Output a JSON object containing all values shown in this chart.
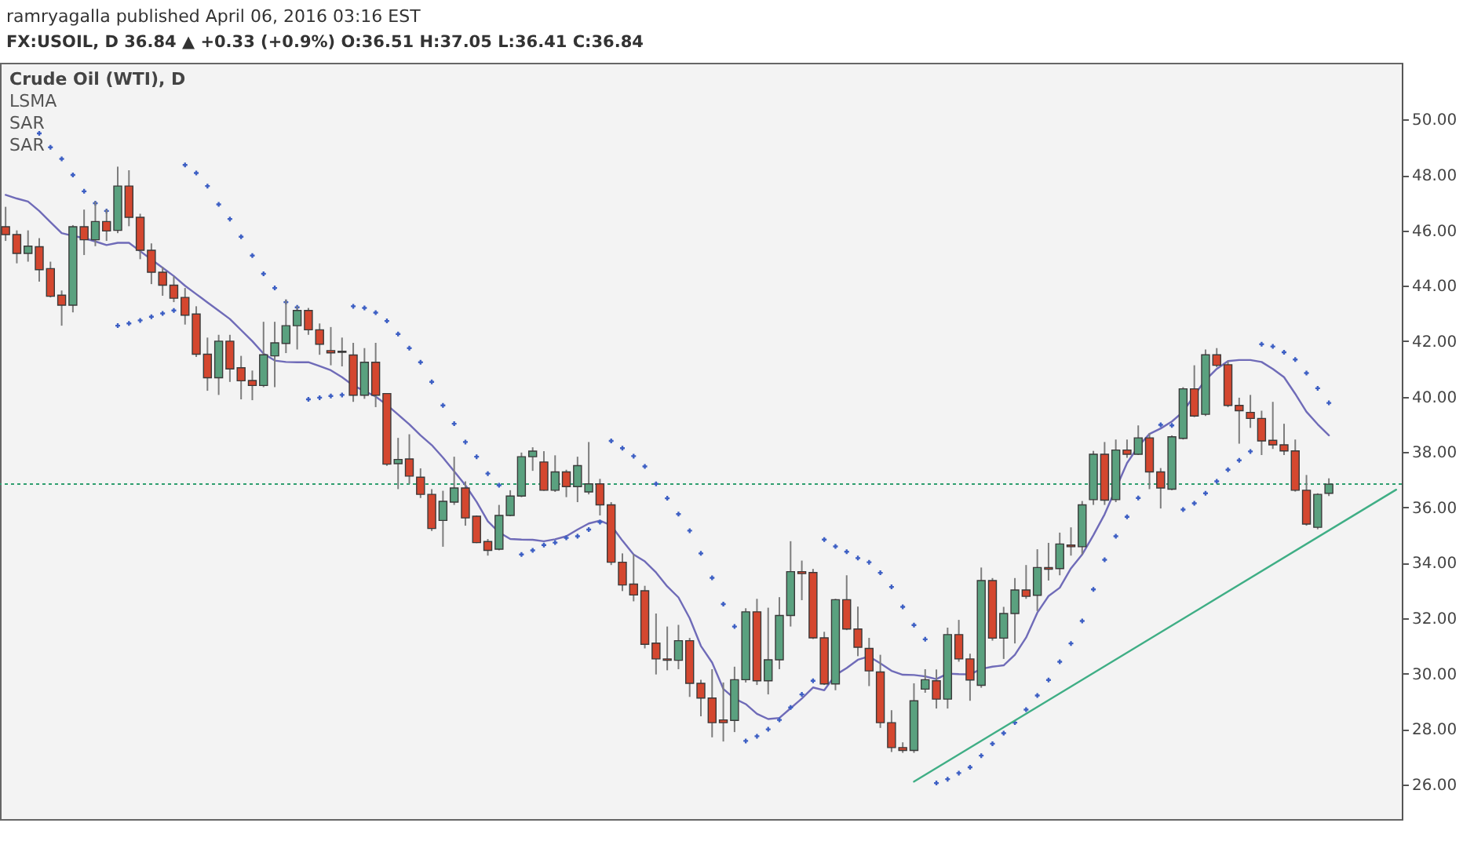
{
  "chart_data": {
    "type": "candlestick",
    "title": "Crude Oil (WTI), D",
    "annotations": [
      "ramryagalla published April 06, 2016 03:16 EST",
      "FX:USOIL, D  36.84 ▲ +0.33 (+0.9%)  O:36.51  H:37.05  L:36.41  C:36.84",
      "LSMA",
      "SAR",
      "SAR"
    ],
    "categories": [
      null,
      null,
      null,
      null,
      null,
      null,
      null,
      null,
      null,
      null,
      null,
      null,
      null,
      null,
      null,
      null,
      null,
      null,
      null,
      null,
      null,
      null,
      null,
      null,
      null,
      null,
      null,
      null,
      null,
      null,
      null,
      null,
      null,
      null,
      null,
      null,
      null,
      null,
      null,
      null,
      null,
      null,
      null,
      null,
      null,
      null,
      null,
      null,
      null,
      null,
      null,
      null,
      null,
      null,
      null,
      null,
      null,
      null,
      null,
      null,
      null,
      null,
      null,
      null,
      null,
      null,
      null,
      null,
      null,
      null,
      null,
      null,
      null,
      null,
      null,
      null,
      null,
      null,
      null,
      null,
      null,
      null,
      null,
      null,
      null,
      null,
      null,
      null,
      null,
      null,
      null,
      null,
      null,
      null,
      null,
      null,
      null,
      null,
      null,
      null,
      null,
      null,
      null,
      null,
      null,
      null,
      null,
      null,
      null,
      null,
      null,
      null,
      null,
      null,
      null,
      null,
      null,
      null,
      null,
      null,
      null,
      null,
      null,
      null,
      null
    ],
    "ohlc": [
      [
        46.13,
        46.85,
        45.62,
        45.85
      ],
      [
        45.85,
        46.0,
        44.81,
        45.17
      ],
      [
        45.17,
        46.0,
        44.87,
        45.43
      ],
      [
        45.41,
        45.72,
        44.15,
        44.58
      ],
      [
        44.62,
        44.87,
        43.58,
        43.62
      ],
      [
        43.66,
        43.83,
        42.56,
        43.3
      ],
      [
        43.3,
        46.19,
        43.04,
        46.13
      ],
      [
        46.13,
        46.75,
        45.11,
        45.66
      ],
      [
        45.66,
        47.04,
        45.43,
        46.32
      ],
      [
        46.32,
        46.75,
        45.62,
        45.98
      ],
      [
        46.0,
        48.3,
        45.9,
        47.6
      ],
      [
        47.6,
        48.17,
        46.15,
        46.47
      ],
      [
        46.47,
        46.6,
        44.96,
        45.28
      ],
      [
        45.28,
        45.53,
        44.06,
        44.49
      ],
      [
        44.49,
        44.68,
        43.64,
        44.02
      ],
      [
        44.02,
        44.34,
        43.41,
        43.55
      ],
      [
        43.58,
        43.92,
        42.6,
        42.94
      ],
      [
        42.98,
        43.26,
        41.43,
        41.53
      ],
      [
        41.53,
        42.13,
        40.21,
        40.68
      ],
      [
        40.68,
        42.23,
        40.06,
        42.0
      ],
      [
        42.0,
        42.23,
        40.53,
        41.0
      ],
      [
        41.04,
        41.47,
        39.9,
        40.57
      ],
      [
        40.58,
        40.94,
        39.87,
        40.4
      ],
      [
        40.4,
        42.7,
        40.34,
        41.51
      ],
      [
        41.47,
        42.7,
        40.34,
        41.94
      ],
      [
        41.92,
        43.51,
        41.57,
        42.56
      ],
      [
        42.56,
        43.26,
        41.7,
        43.11
      ],
      [
        43.11,
        43.2,
        42.23,
        42.41
      ],
      [
        42.41,
        42.64,
        41.51,
        41.89
      ],
      [
        41.66,
        42.51,
        41.13,
        41.58
      ],
      [
        41.64,
        42.13,
        41.09,
        41.6
      ],
      [
        41.5,
        41.94,
        39.81,
        40.05
      ],
      [
        40.05,
        41.75,
        39.92,
        41.24
      ],
      [
        41.24,
        41.94,
        39.62,
        40.05
      ],
      [
        40.11,
        40.11,
        37.5,
        37.56
      ],
      [
        37.58,
        38.51,
        36.66,
        37.73
      ],
      [
        37.75,
        38.64,
        36.85,
        37.13
      ],
      [
        37.09,
        37.41,
        36.34,
        36.47
      ],
      [
        36.47,
        36.66,
        35.15,
        35.24
      ],
      [
        35.53,
        36.6,
        34.58,
        36.22
      ],
      [
        36.19,
        37.83,
        36.09,
        36.7
      ],
      [
        36.7,
        36.94,
        35.34,
        35.62
      ],
      [
        35.68,
        35.71,
        34.71,
        34.73
      ],
      [
        34.77,
        34.86,
        34.26,
        34.45
      ],
      [
        34.49,
        36.09,
        34.45,
        35.71
      ],
      [
        35.71,
        36.62,
        35.68,
        36.41
      ],
      [
        36.41,
        37.98,
        36.37,
        37.83
      ],
      [
        37.83,
        38.17,
        37.32,
        38.03
      ],
      [
        37.64,
        38.03,
        36.6,
        36.62
      ],
      [
        36.62,
        37.88,
        36.56,
        37.28
      ],
      [
        37.28,
        37.36,
        36.37,
        36.75
      ],
      [
        36.75,
        37.83,
        36.19,
        37.51
      ],
      [
        36.56,
        38.36,
        36.47,
        36.85
      ],
      [
        36.85,
        37.03,
        35.71,
        36.09
      ],
      [
        36.09,
        36.19,
        33.92,
        34.02
      ],
      [
        34.02,
        34.34,
        32.98,
        33.2
      ],
      [
        33.23,
        34.31,
        32.61,
        32.84
      ],
      [
        32.99,
        33.17,
        30.91,
        31.06
      ],
      [
        31.1,
        32.17,
        29.97,
        30.53
      ],
      [
        30.53,
        31.7,
        30.12,
        30.48
      ],
      [
        30.48,
        31.76,
        30.16,
        31.19
      ],
      [
        31.19,
        31.29,
        29.16,
        29.65
      ],
      [
        29.65,
        29.78,
        28.46,
        29.12
      ],
      [
        29.12,
        30.16,
        27.7,
        28.23
      ],
      [
        28.33,
        29.68,
        27.55,
        28.23
      ],
      [
        28.31,
        30.25,
        27.89,
        29.78
      ],
      [
        29.78,
        32.36,
        29.68,
        32.23
      ],
      [
        32.23,
        32.7,
        29.59,
        29.74
      ],
      [
        29.74,
        32.38,
        29.25,
        30.5
      ],
      [
        30.5,
        32.76,
        30.16,
        32.1
      ],
      [
        32.1,
        34.78,
        31.7,
        33.68
      ],
      [
        33.68,
        34.08,
        32.65,
        33.61
      ],
      [
        33.65,
        33.78,
        31.25,
        31.29
      ],
      [
        31.29,
        31.51,
        29.59,
        29.63
      ],
      [
        29.63,
        32.7,
        29.4,
        32.67
      ],
      [
        32.67,
        33.55,
        31.57,
        31.61
      ],
      [
        31.61,
        32.42,
        30.63,
        30.95
      ],
      [
        30.91,
        31.29,
        29.55,
        30.1
      ],
      [
        30.06,
        30.68,
        28.04,
        28.23
      ],
      [
        28.23,
        28.68,
        27.17,
        27.33
      ],
      [
        27.33,
        27.52,
        27.14,
        27.23
      ],
      [
        27.23,
        29.65,
        27.14,
        29.02
      ],
      [
        29.44,
        30.16,
        29.31,
        29.78
      ],
      [
        29.74,
        30.15,
        28.74,
        29.08
      ],
      [
        29.08,
        31.66,
        28.74,
        31.41
      ],
      [
        31.41,
        31.94,
        30.43,
        30.53
      ],
      [
        30.53,
        30.72,
        29.02,
        29.77
      ],
      [
        29.58,
        33.83,
        29.49,
        33.36
      ],
      [
        33.36,
        33.45,
        31.19,
        31.28
      ],
      [
        31.28,
        32.41,
        30.53,
        32.17
      ],
      [
        32.17,
        33.45,
        31.09,
        33.02
      ],
      [
        33.02,
        33.92,
        32.7,
        32.79
      ],
      [
        32.83,
        34.49,
        32.26,
        33.83
      ],
      [
        33.83,
        34.72,
        33.36,
        33.77
      ],
      [
        33.79,
        35.09,
        33.55,
        34.68
      ],
      [
        34.64,
        35.28,
        34.26,
        34.58
      ],
      [
        34.58,
        36.23,
        34.3,
        36.09
      ],
      [
        36.28,
        38.04,
        36.09,
        37.92
      ],
      [
        37.92,
        38.36,
        36.09,
        36.26
      ],
      [
        36.28,
        38.45,
        36.19,
        38.07
      ],
      [
        38.07,
        38.45,
        37.79,
        37.92
      ],
      [
        37.92,
        38.96,
        37.89,
        38.51
      ],
      [
        38.51,
        38.68,
        36.66,
        37.28
      ],
      [
        37.28,
        37.42,
        35.96,
        36.7
      ],
      [
        36.66,
        38.6,
        36.62,
        38.55
      ],
      [
        38.49,
        40.34,
        38.45,
        40.28
      ],
      [
        40.28,
        41.13,
        39.26,
        39.3
      ],
      [
        39.36,
        41.7,
        39.3,
        41.51
      ],
      [
        41.51,
        41.75,
        41.06,
        41.13
      ],
      [
        41.15,
        41.28,
        39.62,
        39.68
      ],
      [
        39.68,
        39.96,
        38.3,
        39.49
      ],
      [
        39.43,
        40.06,
        38.87,
        39.21
      ],
      [
        39.21,
        39.49,
        37.89,
        38.4
      ],
      [
        38.42,
        39.81,
        38.11,
        38.26
      ],
      [
        38.26,
        39.02,
        37.89,
        38.04
      ],
      [
        38.04,
        38.45,
        36.57,
        36.62
      ],
      [
        36.62,
        37.17,
        35.34,
        35.4
      ],
      [
        35.28,
        36.51,
        35.21,
        36.47
      ],
      [
        36.51,
        37.05,
        36.41,
        36.84
      ],
      null,
      null,
      null,
      null,
      null,
      null
    ],
    "colors": [
      "#d4472f",
      "#d4472f",
      "#5aa17f",
      "#d4472f",
      "#d4472f",
      "#d4472f",
      "#5aa17f",
      "#d4472f",
      "#5aa17f",
      "#d4472f",
      "#5aa17f",
      "#d4472f",
      "#d4472f",
      "#d4472f",
      "#d4472f",
      "#d4472f",
      "#d4472f",
      "#d4472f",
      "#d4472f",
      "#5aa17f",
      "#d4472f",
      "#d4472f",
      "#d4472f",
      "#5aa17f",
      "#5aa17f",
      "#5aa17f",
      "#5aa17f",
      "#d4472f",
      "#d4472f",
      "#d4472f",
      "#d4472f",
      "#d4472f",
      "#5aa17f",
      "#d4472f",
      "#d4472f",
      "#5aa17f",
      "#d4472f",
      "#d4472f",
      "#d4472f",
      "#5aa17f",
      "#5aa17f",
      "#d4472f",
      "#d4472f",
      "#d4472f",
      "#5aa17f",
      "#5aa17f",
      "#5aa17f",
      "#5aa17f",
      "#d4472f",
      "#5aa17f",
      "#d4472f",
      "#5aa17f",
      "#5aa17f",
      "#d4472f",
      "#d4472f",
      "#d4472f",
      "#d4472f",
      "#d4472f",
      "#d4472f",
      "#d4472f",
      "#5aa17f",
      "#d4472f",
      "#d4472f",
      "#d4472f",
      "#d4472f",
      "#5aa17f",
      "#5aa17f",
      "#d4472f",
      "#5aa17f",
      "#5aa17f",
      "#5aa17f",
      "#d4472f",
      "#d4472f",
      "#d4472f",
      "#5aa17f",
      "#d4472f",
      "#d4472f",
      "#d4472f",
      "#d4472f",
      "#d4472f",
      "#d4472f",
      "#5aa17f",
      "#5aa17f",
      "#d4472f",
      "#5aa17f",
      "#d4472f",
      "#d4472f",
      "#5aa17f",
      "#d4472f",
      "#5aa17f",
      "#5aa17f",
      "#d4472f",
      "#5aa17f",
      "#d4472f",
      "#5aa17f",
      "#d4472f",
      "#5aa17f",
      "#5aa17f",
      "#d4472f",
      "#5aa17f",
      "#d4472f",
      "#5aa17f",
      "#d4472f",
      "#d4472f",
      "#5aa17f",
      "#5aa17f",
      "#d4472f",
      "#5aa17f",
      "#d4472f",
      "#d4472f",
      "#d4472f",
      "#d4472f",
      "#d4472f",
      "#d4472f",
      "#d4472f",
      "#d4472f",
      "#d4472f",
      "#5aa17f",
      "#5aa17f",
      null,
      null,
      null,
      null,
      null,
      null
    ],
    "series": [
      {
        "type": "line",
        "color": "#6f6bb8",
        "values": [
          47.28,
          47.15,
          47.04,
          46.7,
          46.3,
          45.9,
          45.8,
          45.72,
          45.6,
          45.47,
          45.55,
          45.55,
          45.25,
          44.95,
          44.65,
          44.35,
          44.0,
          43.7,
          43.4,
          43.1,
          42.8,
          42.4,
          42.0,
          41.55,
          41.3,
          41.25,
          41.24,
          41.24,
          41.1,
          40.95,
          40.7,
          40.4,
          40.2,
          40.0,
          39.7,
          39.35,
          39.0,
          38.6,
          38.25,
          37.8,
          37.3,
          36.8,
          36.2,
          35.5,
          35.1,
          34.86,
          34.84,
          34.83,
          34.78,
          34.85,
          34.96,
          35.2,
          35.42,
          35.52,
          35.35,
          34.8,
          34.3,
          34.05,
          33.65,
          33.15,
          32.75,
          32.0,
          31.0,
          30.4,
          29.45,
          29.1,
          28.9,
          28.55,
          28.36,
          28.4,
          28.75,
          29.1,
          29.5,
          29.4,
          29.95,
          30.2,
          30.5,
          30.62,
          30.37,
          30.1,
          29.96,
          29.95,
          29.9,
          29.8,
          30.0,
          29.98,
          29.97,
          30.17,
          30.25,
          30.3,
          30.68,
          31.3,
          32.2,
          32.8,
          33.1,
          33.8,
          34.3,
          35.0,
          35.75,
          null,
          37.6,
          38.2,
          38.65,
          38.85,
          39.1,
          39.45,
          40.05,
          40.6,
          41.0,
          41.28,
          41.32,
          41.32,
          41.25,
          41.0,
          40.7,
          40.1,
          39.45,
          39.0,
          38.6,
          null,
          null,
          null,
          null,
          null,
          null
        ]
      },
      {
        "type": "scatter",
        "color": "#3d5fc4",
        "marker": "cross",
        "values": [
          null,
          null,
          null,
          49.5,
          49.0,
          48.58,
          48.0,
          47.41,
          46.98,
          46.7,
          42.56,
          42.64,
          42.75,
          42.88,
          43.0,
          43.11,
          48.36,
          48.07,
          47.6,
          46.94,
          46.41,
          45.77,
          45.09,
          44.43,
          43.92,
          43.41,
          43.22,
          39.9,
          39.96,
          40.02,
          40.06,
          43.26,
          43.2,
          43.03,
          42.73,
          42.26,
          41.75,
          41.24,
          40.53,
          39.68,
          39.02,
          38.36,
          37.83,
          37.22,
          36.8,
          null,
          34.3,
          34.45,
          34.64,
          34.73,
          34.9,
          34.96,
          35.2,
          35.47,
          38.4,
          38.14,
          37.85,
          37.48,
          36.85,
          36.33,
          35.76,
          35.16,
          34.34,
          33.46,
          32.51,
          31.7,
          27.57,
          27.74,
          27.99,
          28.33,
          28.78,
          29.25,
          29.74,
          34.84,
          34.59,
          34.4,
          34.17,
          34.02,
          33.64,
          33.13,
          32.41,
          31.75,
          31.24,
          26.05,
          26.19,
          26.41,
          26.62,
          27.04,
          27.47,
          27.85,
          28.23,
          28.7,
          29.21,
          29.77,
          30.43,
          31.09,
          31.9,
          33.04,
          34.11,
          34.96,
          35.66,
          36.34,
          null,
          38.98,
          38.96,
          35.92,
          36.15,
          36.51,
          36.94,
          37.36,
          37.7,
          38.02,
          41.89,
          41.81,
          41.6,
          41.34,
          40.85,
          40.3,
          39.77,
          null,
          null,
          null,
          null,
          null,
          null
        ]
      },
      {
        "type": "line",
        "color": "#3fae85",
        "values": [
          null,
          null,
          null,
          null,
          null,
          null,
          null,
          null,
          null,
          null,
          null,
          null,
          null,
          null,
          null,
          null,
          null,
          null,
          null,
          null,
          null,
          null,
          null,
          null,
          null,
          null,
          null,
          null,
          null,
          null,
          null,
          null,
          null,
          null,
          null,
          null,
          null,
          null,
          null,
          null,
          null,
          null,
          null,
          null,
          null,
          null,
          null,
          null,
          null,
          null,
          null,
          null,
          null,
          null,
          null,
          null,
          null,
          null,
          null,
          null,
          null,
          null,
          null,
          null,
          null,
          null,
          null,
          null,
          null,
          null,
          null,
          null,
          null,
          null,
          null,
          null,
          null,
          null,
          null,
          null,
          null,
          26.1,
          null,
          null,
          null,
          null,
          null,
          null,
          null,
          null,
          null,
          null,
          null,
          null,
          null,
          null,
          null,
          null,
          null,
          null,
          null,
          null,
          null,
          null,
          null,
          null,
          null,
          null,
          null,
          null,
          null,
          null,
          null,
          null,
          null,
          null,
          null,
          null,
          null,
          null,
          null,
          null,
          null,
          null,
          36.64
        ]
      }
    ],
    "ylim": [
      24.75,
      52.05
    ],
    "yticks": [
      {
        "value": 26,
        "label": "26.00"
      },
      {
        "value": 28,
        "label": "28.00"
      },
      {
        "value": 30,
        "label": "30.00"
      },
      {
        "value": 32,
        "label": "32.00"
      },
      {
        "value": 34,
        "label": "34.00"
      },
      {
        "value": 36,
        "label": "36.00"
      },
      {
        "value": 38,
        "label": "38.00"
      },
      {
        "value": 40,
        "label": "40.00"
      },
      {
        "value": 42,
        "label": "42.00"
      },
      {
        "value": 44,
        "label": "44.00"
      },
      {
        "value": 46,
        "label": "46.00"
      },
      {
        "value": 48,
        "label": "48.00"
      },
      {
        "value": 50,
        "label": "50.00"
      }
    ],
    "ref_lines": [
      {
        "axis": "y",
        "value": 36.84,
        "color": "#2e9e6e",
        "line_style": "dotted"
      }
    ],
    "tick_labels": "y"
  }
}
